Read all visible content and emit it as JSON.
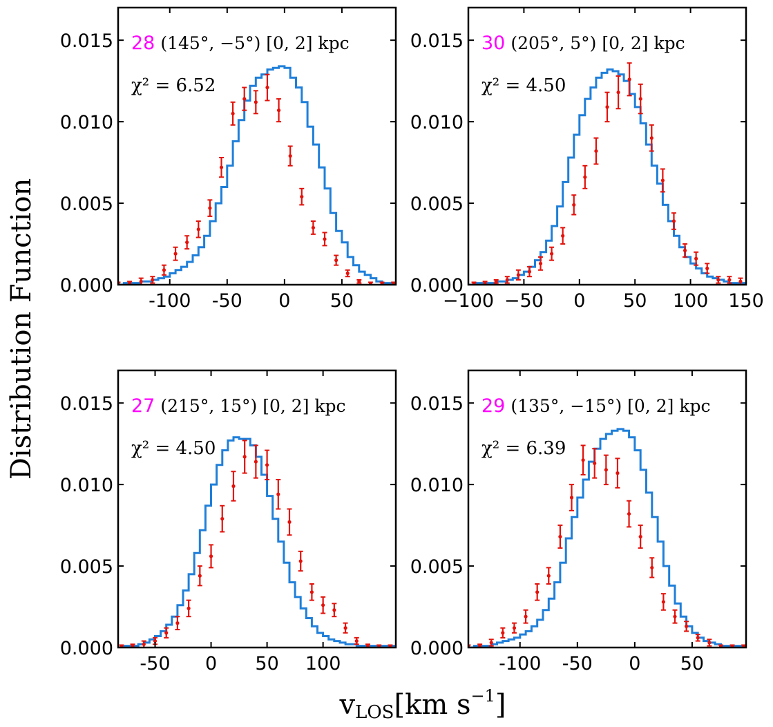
{
  "figure": {
    "ylabel": "Distribution Function",
    "xlabel_main": "v",
    "xlabel_sub": "LOS",
    "xlabel_unit_pre": "[km s",
    "xlabel_unit_sup": "−1",
    "xlabel_unit_post": "]"
  },
  "colors": {
    "model": "#1f7fd9",
    "data": "#e3120b",
    "field_id": "#ff00ff",
    "axes": "#000000"
  },
  "chart_data": [
    {
      "type": "histogram+errorbar",
      "field": "28",
      "label": "(145°, −5°) [0, 2] kpc",
      "chi2": "χ² = 6.52",
      "xlim": [
        -145,
        97
      ],
      "ylim": [
        0,
        0.017
      ],
      "xticks": [
        -100,
        -50,
        0,
        50
      ],
      "xtick_labels": [
        "-100",
        "-50",
        "0",
        "50"
      ],
      "yticks": [
        0,
        0.005,
        0.01,
        0.015
      ],
      "ytick_labels": [
        "0.000",
        "0.005",
        "0.010",
        "0.015"
      ],
      "model": {
        "bin_start": -145,
        "bin_width": 5,
        "values": [
          0,
          0.0001,
          0.0001,
          0.0001,
          0.0002,
          0.0002,
          0.0003,
          0.0004,
          0.0005,
          0.0007,
          0.0009,
          0.0011,
          0.0014,
          0.0018,
          0.0023,
          0.003,
          0.0039,
          0.005,
          0.006,
          0.0073,
          0.0088,
          0.0101,
          0.0113,
          0.0122,
          0.0127,
          0.0129,
          0.0132,
          0.0133,
          0.0134,
          0.0133,
          0.0127,
          0.0121,
          0.0112,
          0.0097,
          0.0086,
          0.0072,
          0.0059,
          0.0044,
          0.0033,
          0.0026,
          0.0017,
          0.0012,
          0.0008,
          0.0006,
          0.0004,
          0.0002,
          0.0001,
          0.0001,
          0.0001
        ]
      },
      "data": {
        "x": [
          -145,
          -135,
          -125,
          -115,
          -105,
          -95,
          -85,
          -75,
          -65,
          -55,
          -45,
          -35,
          -25,
          -15,
          -5,
          5,
          15,
          25,
          35,
          45,
          55,
          65,
          75,
          85,
          95
        ],
        "y": [
          5e-05,
          0.0001,
          0.0002,
          0.0003,
          0.0009,
          0.0019,
          0.0026,
          0.0034,
          0.0047,
          0.0072,
          0.0105,
          0.0114,
          0.0112,
          0.0121,
          0.0107,
          0.0079,
          0.0054,
          0.0035,
          0.0028,
          0.0015,
          0.0007,
          0.0002,
          5e-05,
          5e-05,
          5e-05
        ],
        "err": [
          0.0001,
          0.0001,
          0.0002,
          0.0002,
          0.0003,
          0.0004,
          0.0004,
          0.0005,
          0.0005,
          0.0006,
          0.0007,
          0.0007,
          0.0007,
          0.0008,
          0.0007,
          0.0006,
          0.0005,
          0.0004,
          0.0004,
          0.0003,
          0.0002,
          0.0001,
          0.0001,
          0.0001,
          0.0001
        ]
      }
    },
    {
      "type": "histogram+errorbar",
      "field": "30",
      "label": "(205°, 5°) [0, 2] kpc",
      "chi2": "χ² = 4.50",
      "xlim": [
        -100,
        150
      ],
      "ylim": [
        0,
        0.017
      ],
      "xticks": [
        -100,
        -50,
        0,
        50,
        100,
        150
      ],
      "xtick_labels": [
        "−100",
        "−50",
        "0",
        "50",
        "100",
        "150"
      ],
      "yticks": [
        0,
        0.005,
        0.01,
        0.015
      ],
      "ytick_labels": [
        "0.000",
        "0.005",
        "0.010",
        "0.015"
      ],
      "model": {
        "bin_start": -100,
        "bin_width": 5,
        "values": [
          0,
          0.0001,
          0.0001,
          0.0001,
          0.0001,
          0.0002,
          0.0002,
          0.0003,
          0.0004,
          0.0006,
          0.0008,
          0.0011,
          0.0015,
          0.002,
          0.0027,
          0.0036,
          0.0048,
          0.0063,
          0.0078,
          0.0092,
          0.0104,
          0.0114,
          0.0121,
          0.0127,
          0.013,
          0.0132,
          0.0131,
          0.0129,
          0.0125,
          0.0117,
          0.0109,
          0.0099,
          0.0086,
          0.0073,
          0.0062,
          0.0049,
          0.0039,
          0.003,
          0.0023,
          0.0017,
          0.0013,
          0.001,
          0.0007,
          0.0005,
          0.0004,
          0.0003,
          0.0002,
          0.0001,
          0.0001,
          0.0001
        ]
      },
      "data": {
        "x": [
          -95,
          -85,
          -75,
          -65,
          -55,
          -45,
          -35,
          -25,
          -15,
          -5,
          5,
          15,
          25,
          35,
          45,
          55,
          65,
          75,
          85,
          95,
          105,
          115,
          125,
          135,
          145
        ],
        "y": [
          5e-05,
          0.0001,
          0.0002,
          0.0003,
          0.0006,
          0.0008,
          0.0013,
          0.0019,
          0.003,
          0.0049,
          0.0066,
          0.0082,
          0.0109,
          0.0118,
          0.0126,
          0.0114,
          0.009,
          0.0064,
          0.0039,
          0.0021,
          0.0016,
          0.001,
          0.0003,
          0.0003,
          0.0002
        ],
        "err": [
          0.0001,
          0.0001,
          0.0001,
          0.0002,
          0.0003,
          0.0003,
          0.0004,
          0.0004,
          0.0005,
          0.0006,
          0.0007,
          0.0008,
          0.0009,
          0.001,
          0.001,
          0.0009,
          0.0008,
          0.0007,
          0.0005,
          0.0004,
          0.0004,
          0.0003,
          0.0002,
          0.0002,
          0.0002
        ]
      }
    },
    {
      "type": "histogram+errorbar",
      "field": "27",
      "label": "(215°, 15°) [0, 2] kpc",
      "chi2": "χ² = 4.50",
      "xlim": [
        -83,
        165
      ],
      "ylim": [
        0,
        0.017
      ],
      "xticks": [
        -50,
        0,
        50,
        100
      ],
      "xtick_labels": [
        "-50",
        "0",
        "50",
        "100"
      ],
      "yticks": [
        0,
        0.005,
        0.01,
        0.015
      ],
      "ytick_labels": [
        "0.000",
        "0.005",
        "0.010",
        "0.015"
      ],
      "model": {
        "bin_start": -85,
        "bin_width": 5,
        "values": [
          0,
          0.0001,
          0.0001,
          0.0001,
          0.0002,
          0.0003,
          0.0005,
          0.0007,
          0.001,
          0.0014,
          0.0019,
          0.0026,
          0.0035,
          0.0045,
          0.0058,
          0.0072,
          0.0087,
          0.01,
          0.0112,
          0.0121,
          0.0127,
          0.0129,
          0.0128,
          0.0128,
          0.0124,
          0.0117,
          0.0106,
          0.0093,
          0.0079,
          0.0065,
          0.0052,
          0.004,
          0.0031,
          0.0024,
          0.0018,
          0.0013,
          0.0009,
          0.0007,
          0.0005,
          0.0004,
          0.0003,
          0.0002,
          0.0002,
          0.0001,
          0.0001,
          0.0001,
          0.0001,
          0.0001,
          0.0001,
          0.0001
        ]
      },
      "data": {
        "x": [
          -80,
          -70,
          -60,
          -50,
          -40,
          -30,
          -20,
          -10,
          0,
          10,
          20,
          30,
          40,
          50,
          60,
          70,
          80,
          90,
          100,
          110,
          120,
          130,
          140,
          150,
          160
        ],
        "y": [
          5e-05,
          0.0001,
          0.0002,
          0.0004,
          0.0009,
          0.0015,
          0.0024,
          0.0044,
          0.0056,
          0.0079,
          0.0099,
          0.0117,
          0.0114,
          0.0112,
          0.0094,
          0.0077,
          0.0053,
          0.0034,
          0.0026,
          0.0023,
          0.0012,
          0.0004,
          0.0001,
          5e-05,
          5e-05
        ],
        "err": [
          0.0001,
          0.0001,
          0.0002,
          0.0002,
          0.0003,
          0.0004,
          0.0005,
          0.0006,
          0.0007,
          0.0008,
          0.0009,
          0.001,
          0.001,
          0.0009,
          0.0009,
          0.0008,
          0.0006,
          0.0005,
          0.0005,
          0.0004,
          0.0003,
          0.0002,
          0.0001,
          0.0001,
          0.0001
        ]
      }
    },
    {
      "type": "histogram+errorbar",
      "field": "29",
      "label": "(135°, −15°) [0, 2] kpc",
      "chi2": "χ² = 6.39",
      "xlim": [
        -145,
        97
      ],
      "ylim": [
        0,
        0.017
      ],
      "xticks": [
        -100,
        -50,
        0,
        50
      ],
      "xtick_labels": [
        "-100",
        "-50",
        "0",
        "50"
      ],
      "yticks": [
        0,
        0.005,
        0.01,
        0.015
      ],
      "ytick_labels": [
        "0.000",
        "0.005",
        "0.010",
        "0.015"
      ],
      "model": {
        "bin_start": -145,
        "bin_width": 5,
        "values": [
          0,
          0.0001,
          0.0001,
          0.0001,
          0.0002,
          0.0003,
          0.0004,
          0.0005,
          0.0006,
          0.0008,
          0.001,
          0.0013,
          0.0017,
          0.0023,
          0.003,
          0.004,
          0.0052,
          0.0067,
          0.008,
          0.0092,
          0.0103,
          0.0114,
          0.0122,
          0.0128,
          0.0131,
          0.0133,
          0.0134,
          0.0133,
          0.0129,
          0.0121,
          0.0109,
          0.0095,
          0.008,
          0.0065,
          0.005,
          0.0038,
          0.0027,
          0.0019,
          0.0013,
          0.0009,
          0.0006,
          0.0004,
          0.0003,
          0.0002,
          0.0001,
          0.0001,
          0.0001,
          0.0001,
          0.0001
        ]
      },
      "data": {
        "x": [
          -145,
          -135,
          -125,
          -115,
          -105,
          -95,
          -85,
          -75,
          -65,
          -55,
          -45,
          -35,
          -25,
          -15,
          -5,
          5,
          15,
          25,
          35,
          45,
          55,
          65,
          75,
          85,
          95
        ],
        "y": [
          5e-05,
          0.0001,
          0.0003,
          0.0009,
          0.0012,
          0.0019,
          0.0034,
          0.0044,
          0.0068,
          0.0092,
          0.0115,
          0.0113,
          0.0109,
          0.0107,
          0.0082,
          0.0068,
          0.0049,
          0.0028,
          0.0019,
          0.0013,
          0.0006,
          0.0003,
          5e-05,
          5e-05,
          5e-05
        ],
        "err": [
          0.0001,
          0.0001,
          0.0002,
          0.0003,
          0.0003,
          0.0004,
          0.0005,
          0.0005,
          0.0007,
          0.0008,
          0.0009,
          0.0009,
          0.0009,
          0.0009,
          0.0008,
          0.0007,
          0.0006,
          0.0005,
          0.0004,
          0.0003,
          0.0002,
          0.0002,
          0.0001,
          0.0001,
          0.0001
        ]
      }
    }
  ]
}
